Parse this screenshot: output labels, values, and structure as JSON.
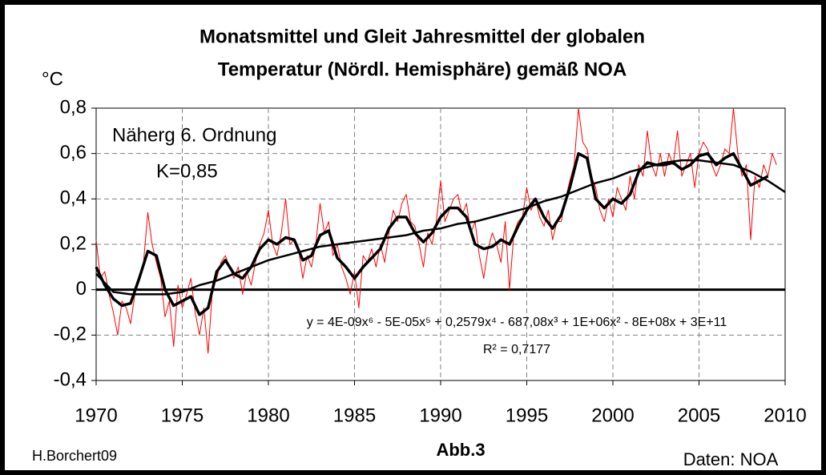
{
  "chart_data": {
    "type": "line",
    "title": [
      "Monatsmittel und Gleit Jahresmittel der globalen",
      "Temperatur (Nördl. Hemisphäre) gemäß NOA"
    ],
    "y_label": "°C",
    "annotations": [
      "Näherg 6. Ordnung",
      "K=0,85"
    ],
    "equation": "y = 4E-09x⁶ - 5E-05x⁵ + 0,2579x⁴ - 687,08x³ + 1E+06x² - 8E+08x + 3E+11",
    "r_squared": "R² = 0,7177",
    "figure_label": "Abb.3",
    "author": "H.Borchert09",
    "source": "Daten: NOA",
    "xlim": [
      1970,
      2010
    ],
    "xticks": [
      1970,
      1975,
      1980,
      1985,
      1990,
      1995,
      2000,
      2005,
      2010
    ],
    "ylim": [
      -0.4,
      0.8
    ],
    "yticks": [
      {
        "value": -0.4,
        "label": "-0,4"
      },
      {
        "value": -0.2,
        "label": "-0,2"
      },
      0,
      {
        "value": 0.2,
        "label": "0,2"
      },
      {
        "value": 0.4,
        "label": "0,4"
      },
      {
        "value": 0.6,
        "label": "0,6"
      },
      {
        "value": 0.8,
        "label": "0,8"
      }
    ],
    "grid": true,
    "series": [
      {
        "color": "#ff0000",
        "x": [
          1970,
          1970.25,
          1970.5,
          1970.75,
          1971,
          1971.25,
          1971.5,
          1971.75,
          1972,
          1972.25,
          1972.5,
          1972.75,
          1973,
          1973.25,
          1973.5,
          1973.75,
          1974,
          1974.25,
          1974.5,
          1974.75,
          1975,
          1975.25,
          1975.5,
          1975.75,
          1976,
          1976.25,
          1976.5,
          1976.75,
          1977,
          1977.25,
          1977.5,
          1977.75,
          1978,
          1978.25,
          1978.5,
          1978.75,
          1979,
          1979.25,
          1979.5,
          1979.75,
          1980,
          1980.25,
          1980.5,
          1980.75,
          1981,
          1981.25,
          1981.5,
          1981.75,
          1982,
          1982.25,
          1982.5,
          1982.75,
          1983,
          1983.25,
          1983.5,
          1983.75,
          1984,
          1984.25,
          1984.5,
          1984.75,
          1985,
          1985.25,
          1985.5,
          1985.75,
          1986,
          1986.25,
          1986.5,
          1986.75,
          1987,
          1987.25,
          1987.5,
          1987.75,
          1988,
          1988.25,
          1988.5,
          1988.75,
          1989,
          1989.25,
          1989.5,
          1989.75,
          1990,
          1990.25,
          1990.5,
          1990.75,
          1991,
          1991.25,
          1991.5,
          1991.75,
          1992,
          1992.25,
          1992.5,
          1992.75,
          1993,
          1993.25,
          1993.5,
          1993.75,
          1994,
          1994.25,
          1994.5,
          1994.75,
          1995,
          1995.25,
          1995.5,
          1995.75,
          1996,
          1996.25,
          1996.5,
          1996.75,
          1997,
          1997.25,
          1997.5,
          1997.75,
          1998,
          1998.25,
          1998.5,
          1998.75,
          1999,
          1999.25,
          1999.5,
          1999.75,
          2000,
          2000.25,
          2000.5,
          2000.75,
          2001,
          2001.25,
          2001.5,
          2001.75,
          2002,
          2002.25,
          2002.5,
          2002.75,
          2003,
          2003.25,
          2003.5,
          2003.75,
          2004,
          2004.25,
          2004.5,
          2004.75,
          2005,
          2005.25,
          2005.5,
          2005.75,
          2006,
          2006.25,
          2006.5,
          2006.75,
          2007,
          2007.25,
          2007.5,
          2007.75,
          2008,
          2008.25,
          2008.5,
          2008.75,
          2009,
          2009.25,
          2009.5
        ],
        "values": [
          0.22,
          0.05,
          0.08,
          -0.02,
          -0.1,
          -0.2,
          -0.05,
          -0.08,
          -0.15,
          -0.02,
          0.05,
          0.12,
          0.34,
          0.2,
          0.12,
          0.05,
          -0.12,
          -0.05,
          -0.25,
          0.02,
          -0.08,
          -0.02,
          0.05,
          -0.1,
          -0.2,
          -0.08,
          -0.28,
          0.0,
          0.05,
          0.12,
          0.15,
          0.1,
          0.05,
          0.1,
          -0.02,
          0.08,
          0.02,
          0.12,
          0.2,
          0.25,
          0.35,
          0.2,
          0.15,
          0.25,
          0.4,
          0.2,
          0.22,
          0.18,
          0.05,
          0.15,
          0.1,
          0.2,
          0.38,
          0.25,
          0.3,
          0.15,
          0.2,
          0.1,
          0.05,
          -0.02,
          0.08,
          -0.08,
          0.15,
          0.12,
          0.18,
          0.1,
          0.2,
          0.12,
          0.25,
          0.35,
          0.3,
          0.38,
          0.42,
          0.3,
          0.28,
          0.2,
          0.1,
          0.25,
          0.2,
          0.3,
          0.48,
          0.3,
          0.35,
          0.4,
          0.42,
          0.33,
          0.38,
          0.25,
          0.3,
          0.15,
          0.05,
          0.18,
          0.25,
          0.2,
          0.12,
          0.3,
          0.0,
          0.25,
          0.3,
          0.32,
          0.45,
          0.35,
          0.4,
          0.32,
          0.28,
          0.35,
          0.22,
          0.3,
          0.3,
          0.4,
          0.48,
          0.55,
          0.8,
          0.65,
          0.62,
          0.5,
          0.45,
          0.35,
          0.3,
          0.4,
          0.32,
          0.45,
          0.4,
          0.35,
          0.5,
          0.4,
          0.55,
          0.5,
          0.7,
          0.55,
          0.5,
          0.6,
          0.5,
          0.6,
          0.55,
          0.7,
          0.5,
          0.55,
          0.6,
          0.45,
          0.6,
          0.65,
          0.62,
          0.55,
          0.5,
          0.55,
          0.62,
          0.6,
          0.8,
          0.6,
          0.5,
          0.55,
          0.22,
          0.5,
          0.45,
          0.55,
          0.5,
          0.6,
          0.55
        ]
      },
      {
        "color": "#000000",
        "x": [
          1970,
          1970.5,
          1971,
          1971.5,
          1972,
          1972.5,
          1973,
          1973.5,
          1974,
          1974.5,
          1975,
          1975.5,
          1976,
          1976.5,
          1977,
          1977.5,
          1978,
          1978.5,
          1979,
          1979.5,
          1980,
          1980.5,
          1981,
          1981.5,
          1982,
          1982.5,
          1983,
          1983.5,
          1984,
          1984.5,
          1985,
          1985.5,
          1986,
          1986.5,
          1987,
          1987.5,
          1988,
          1988.5,
          1989,
          1989.5,
          1990,
          1990.5,
          1991,
          1991.5,
          1992,
          1992.5,
          1993,
          1993.5,
          1994,
          1994.5,
          1995,
          1995.5,
          1996,
          1996.5,
          1997,
          1997.5,
          1998,
          1998.5,
          1999,
          1999.5,
          2000,
          2000.5,
          2001,
          2001.5,
          2002,
          2002.5,
          2003,
          2003.5,
          2004,
          2004.5,
          2005,
          2005.5,
          2006,
          2006.5,
          2007,
          2007.5,
          2008,
          2008.5,
          2009
        ],
        "values": [
          0.1,
          0.02,
          -0.04,
          -0.07,
          -0.06,
          0.05,
          0.17,
          0.15,
          0.0,
          -0.07,
          -0.05,
          -0.03,
          -0.11,
          -0.08,
          0.08,
          0.13,
          0.07,
          0.05,
          0.1,
          0.18,
          0.22,
          0.2,
          0.23,
          0.22,
          0.13,
          0.15,
          0.24,
          0.26,
          0.14,
          0.1,
          0.05,
          0.1,
          0.14,
          0.18,
          0.27,
          0.32,
          0.32,
          0.25,
          0.21,
          0.25,
          0.32,
          0.36,
          0.36,
          0.32,
          0.2,
          0.18,
          0.19,
          0.22,
          0.2,
          0.28,
          0.35,
          0.4,
          0.32,
          0.27,
          0.33,
          0.45,
          0.6,
          0.58,
          0.4,
          0.36,
          0.4,
          0.38,
          0.42,
          0.52,
          0.56,
          0.55,
          0.55,
          0.56,
          0.53,
          0.55,
          0.59,
          0.6,
          0.55,
          0.58,
          0.6,
          0.53,
          0.46,
          0.48,
          0.5
        ]
      },
      {
        "color": "#000000",
        "x": [
          1970,
          1971,
          1972,
          1973,
          1974,
          1975,
          1976,
          1977,
          1978,
          1979,
          1980,
          1981,
          1982,
          1983,
          1984,
          1985,
          1986,
          1987,
          1988,
          1989,
          1990,
          1991,
          1992,
          1993,
          1994,
          1995,
          1996,
          1997,
          1998,
          1999,
          2000,
          2001,
          2002,
          2003,
          2004,
          2005,
          2006,
          2007,
          2008,
          2009,
          2010
        ],
        "values": [
          0.07,
          -0.01,
          -0.02,
          -0.02,
          -0.02,
          -0.01,
          0.02,
          0.04,
          0.07,
          0.1,
          0.13,
          0.15,
          0.17,
          0.19,
          0.2,
          0.21,
          0.22,
          0.23,
          0.24,
          0.26,
          0.27,
          0.29,
          0.3,
          0.32,
          0.34,
          0.36,
          0.39,
          0.41,
          0.44,
          0.47,
          0.49,
          0.52,
          0.54,
          0.56,
          0.57,
          0.57,
          0.56,
          0.55,
          0.52,
          0.48,
          0.43
        ]
      }
    ]
  }
}
